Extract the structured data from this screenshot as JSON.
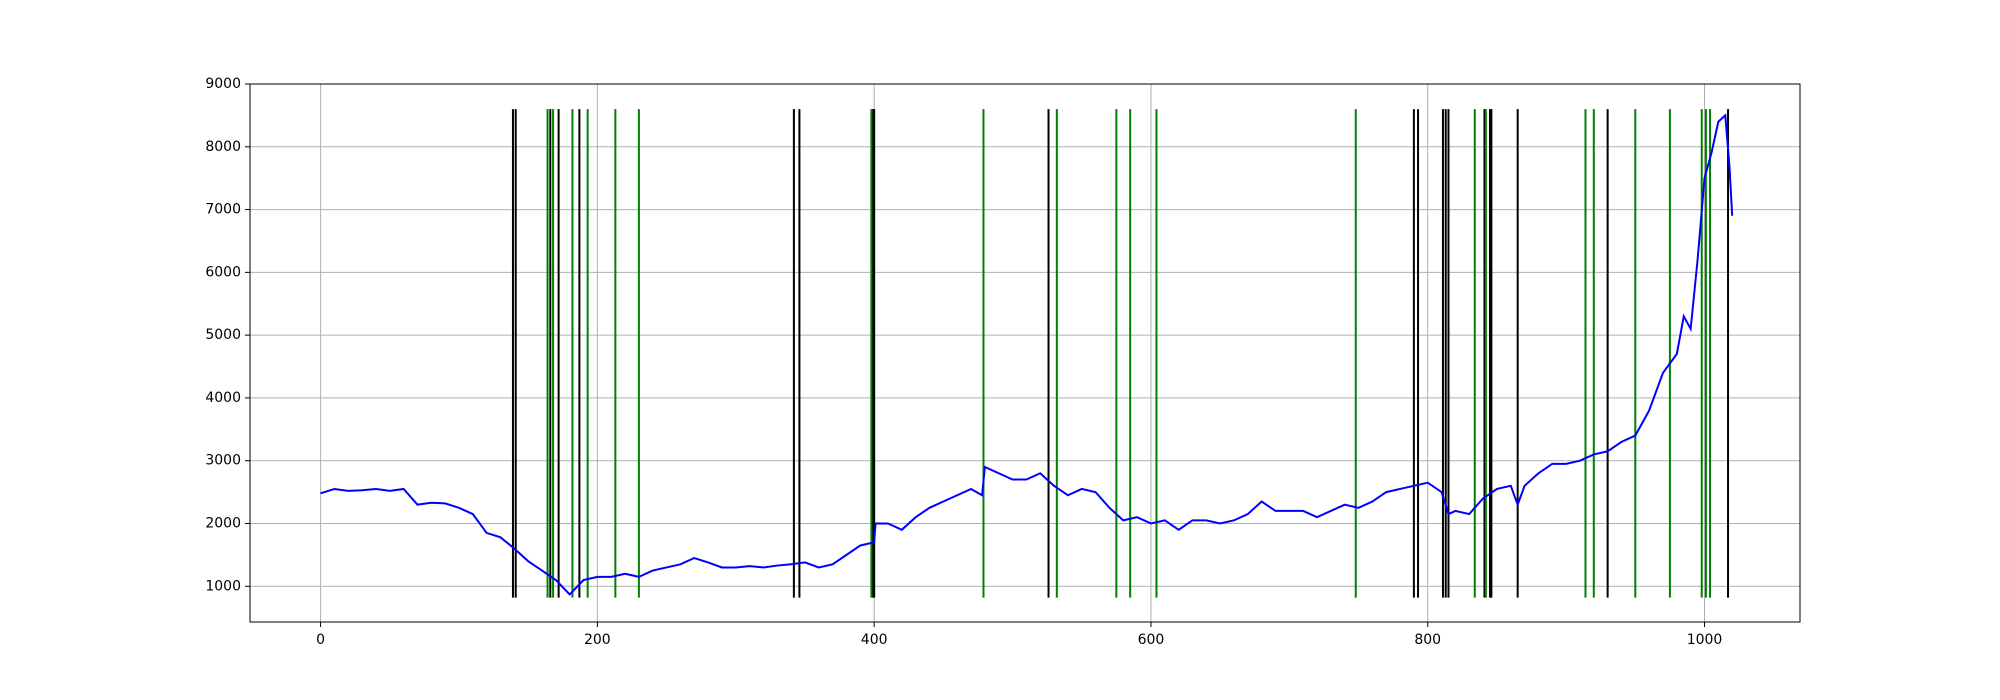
{
  "chart_data": {
    "type": "line",
    "xlim": [
      -51,
      1069
    ],
    "xticks": [
      0,
      200,
      400,
      600,
      800,
      1000
    ],
    "ylim": [
      431,
      9000
    ],
    "yticks": [
      1000,
      2000,
      3000,
      4000,
      5000,
      6000,
      7000,
      8000,
      9000
    ],
    "grid": true,
    "series": [
      {
        "color": "#0000ff",
        "x": [
          0,
          10,
          20,
          30,
          40,
          50,
          60,
          70,
          80,
          90,
          100,
          110,
          120,
          130,
          140,
          150,
          160,
          170,
          180,
          190,
          200,
          210,
          220,
          230,
          240,
          250,
          260,
          270,
          280,
          290,
          300,
          310,
          320,
          330,
          340,
          350,
          360,
          370,
          380,
          390,
          400,
          401,
          410,
          420,
          430,
          440,
          450,
          460,
          470,
          478,
          480,
          490,
          500,
          510,
          520,
          530,
          540,
          550,
          560,
          570,
          580,
          590,
          600,
          610,
          620,
          630,
          640,
          650,
          660,
          670,
          680,
          690,
          700,
          710,
          720,
          730,
          740,
          750,
          760,
          770,
          780,
          790,
          800,
          810,
          815,
          820,
          830,
          840,
          850,
          860,
          865,
          870,
          880,
          890,
          900,
          910,
          920,
          930,
          940,
          950,
          960,
          970,
          980,
          985,
          990,
          995,
          1000,
          1005,
          1010,
          1015,
          1018,
          1020
        ],
        "values": [
          2480,
          2550,
          2520,
          2530,
          2550,
          2520,
          2550,
          2300,
          2330,
          2320,
          2250,
          2150,
          1850,
          1780,
          1600,
          1400,
          1250,
          1100,
          870,
          1100,
          1150,
          1150,
          1200,
          1150,
          1250,
          1300,
          1350,
          1450,
          1380,
          1300,
          1300,
          1320,
          1300,
          1330,
          1350,
          1380,
          1300,
          1350,
          1500,
          1650,
          1700,
          2000,
          2000,
          1900,
          2100,
          2250,
          2350,
          2450,
          2550,
          2450,
          2900,
          2800,
          2700,
          2700,
          2800,
          2600,
          2450,
          2550,
          2500,
          2250,
          2050,
          2100,
          2000,
          2050,
          1900,
          2050,
          2050,
          2000,
          2050,
          2150,
          2350,
          2200,
          2200,
          2200,
          2100,
          2200,
          2300,
          2250,
          2350,
          2500,
          2550,
          2600,
          2650,
          2500,
          2150,
          2200,
          2150,
          2400,
          2550,
          2600,
          2300,
          2600,
          2800,
          2950,
          2950,
          3000,
          3100,
          3150,
          3300,
          3400,
          3800,
          4400,
          4700,
          5300,
          5100,
          6200,
          7500,
          7900,
          8400,
          8500,
          7700,
          6900
        ]
      }
    ],
    "vlines": {
      "ymin": 820,
      "ymax": 8600,
      "groups": [
        {
          "color": "#000000",
          "x": [
            139,
            141,
            166,
            172,
            187,
            342,
            346,
            399,
            400,
            526,
            790,
            793,
            811,
            813,
            815,
            841,
            845,
            846,
            865,
            930,
            1017
          ]
        },
        {
          "color": "#008000",
          "x": [
            164,
            168,
            182,
            193,
            213,
            230,
            398,
            479,
            532,
            575,
            585,
            604,
            748,
            834,
            842,
            914,
            920,
            950,
            975,
            998,
            1001,
            1004
          ]
        }
      ]
    }
  }
}
